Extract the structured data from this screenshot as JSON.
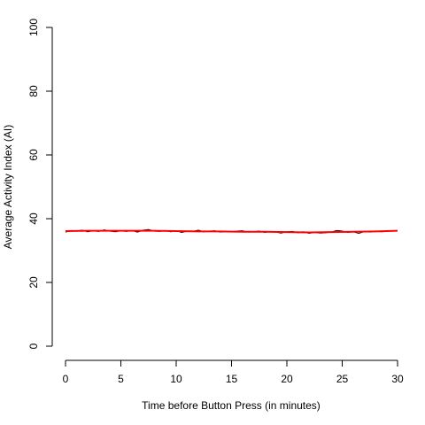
{
  "chart_data": {
    "type": "line",
    "title": "",
    "xlabel": "Time before Button Press (in minutes)",
    "ylabel": "Average Activity Index (AI)",
    "xlim": [
      0,
      30
    ],
    "ylim": [
      0,
      100
    ],
    "x_ticks": [
      0,
      5,
      10,
      15,
      20,
      25,
      30
    ],
    "y_ticks": [
      0,
      20,
      40,
      60,
      80,
      100
    ],
    "grid": false,
    "legend": "none",
    "series": [
      {
        "role": "raw",
        "color": "#000000",
        "x": [
          0.0,
          0.5,
          1.0,
          1.5,
          2.0,
          2.5,
          3.0,
          3.5,
          4.0,
          4.5,
          5.0,
          5.5,
          6.0,
          6.5,
          7.0,
          7.5,
          8.0,
          8.5,
          9.0,
          9.5,
          10.0,
          10.5,
          11.0,
          11.5,
          12.0,
          12.5,
          13.0,
          13.5,
          14.0,
          14.5,
          15.0,
          15.5,
          16.0,
          16.5,
          17.0,
          17.5,
          18.0,
          18.5,
          19.0,
          19.5,
          20.0,
          20.5,
          21.0,
          21.5,
          22.0,
          22.5,
          23.0,
          23.5,
          24.0,
          24.5,
          25.0,
          25.5,
          26.0,
          26.5,
          27.0,
          27.5,
          28.0,
          28.5,
          29.0,
          29.5,
          30.0
        ],
        "values": [
          35.8,
          36.3,
          36.1,
          36.4,
          35.9,
          36.2,
          36.0,
          36.5,
          36.1,
          35.9,
          36.2,
          36.0,
          36.3,
          35.8,
          36.4,
          36.6,
          36.1,
          36.0,
          36.3,
          35.9,
          36.2,
          35.7,
          36.1,
          36.0,
          36.4,
          35.9,
          36.1,
          36.2,
          35.8,
          36.0,
          35.9,
          36.1,
          36.2,
          35.8,
          35.9,
          36.1,
          35.7,
          36.0,
          35.8,
          35.5,
          35.9,
          36.0,
          35.6,
          35.9,
          35.4,
          35.7,
          35.5,
          35.6,
          35.8,
          36.3,
          36.1,
          35.7,
          35.9,
          35.4,
          36.0,
          35.8,
          36.1,
          35.9,
          36.0,
          36.2,
          36.3
        ]
      },
      {
        "role": "smoothed",
        "color": "#ff0000",
        "x": [
          0,
          2,
          4,
          6,
          8,
          10,
          12,
          14,
          16,
          18,
          20,
          22,
          24,
          26,
          28,
          30
        ],
        "values": [
          36.1,
          36.2,
          36.2,
          36.2,
          36.2,
          36.1,
          36.0,
          36.0,
          35.9,
          35.9,
          35.8,
          35.7,
          35.8,
          35.9,
          36.0,
          36.2
        ]
      }
    ]
  }
}
